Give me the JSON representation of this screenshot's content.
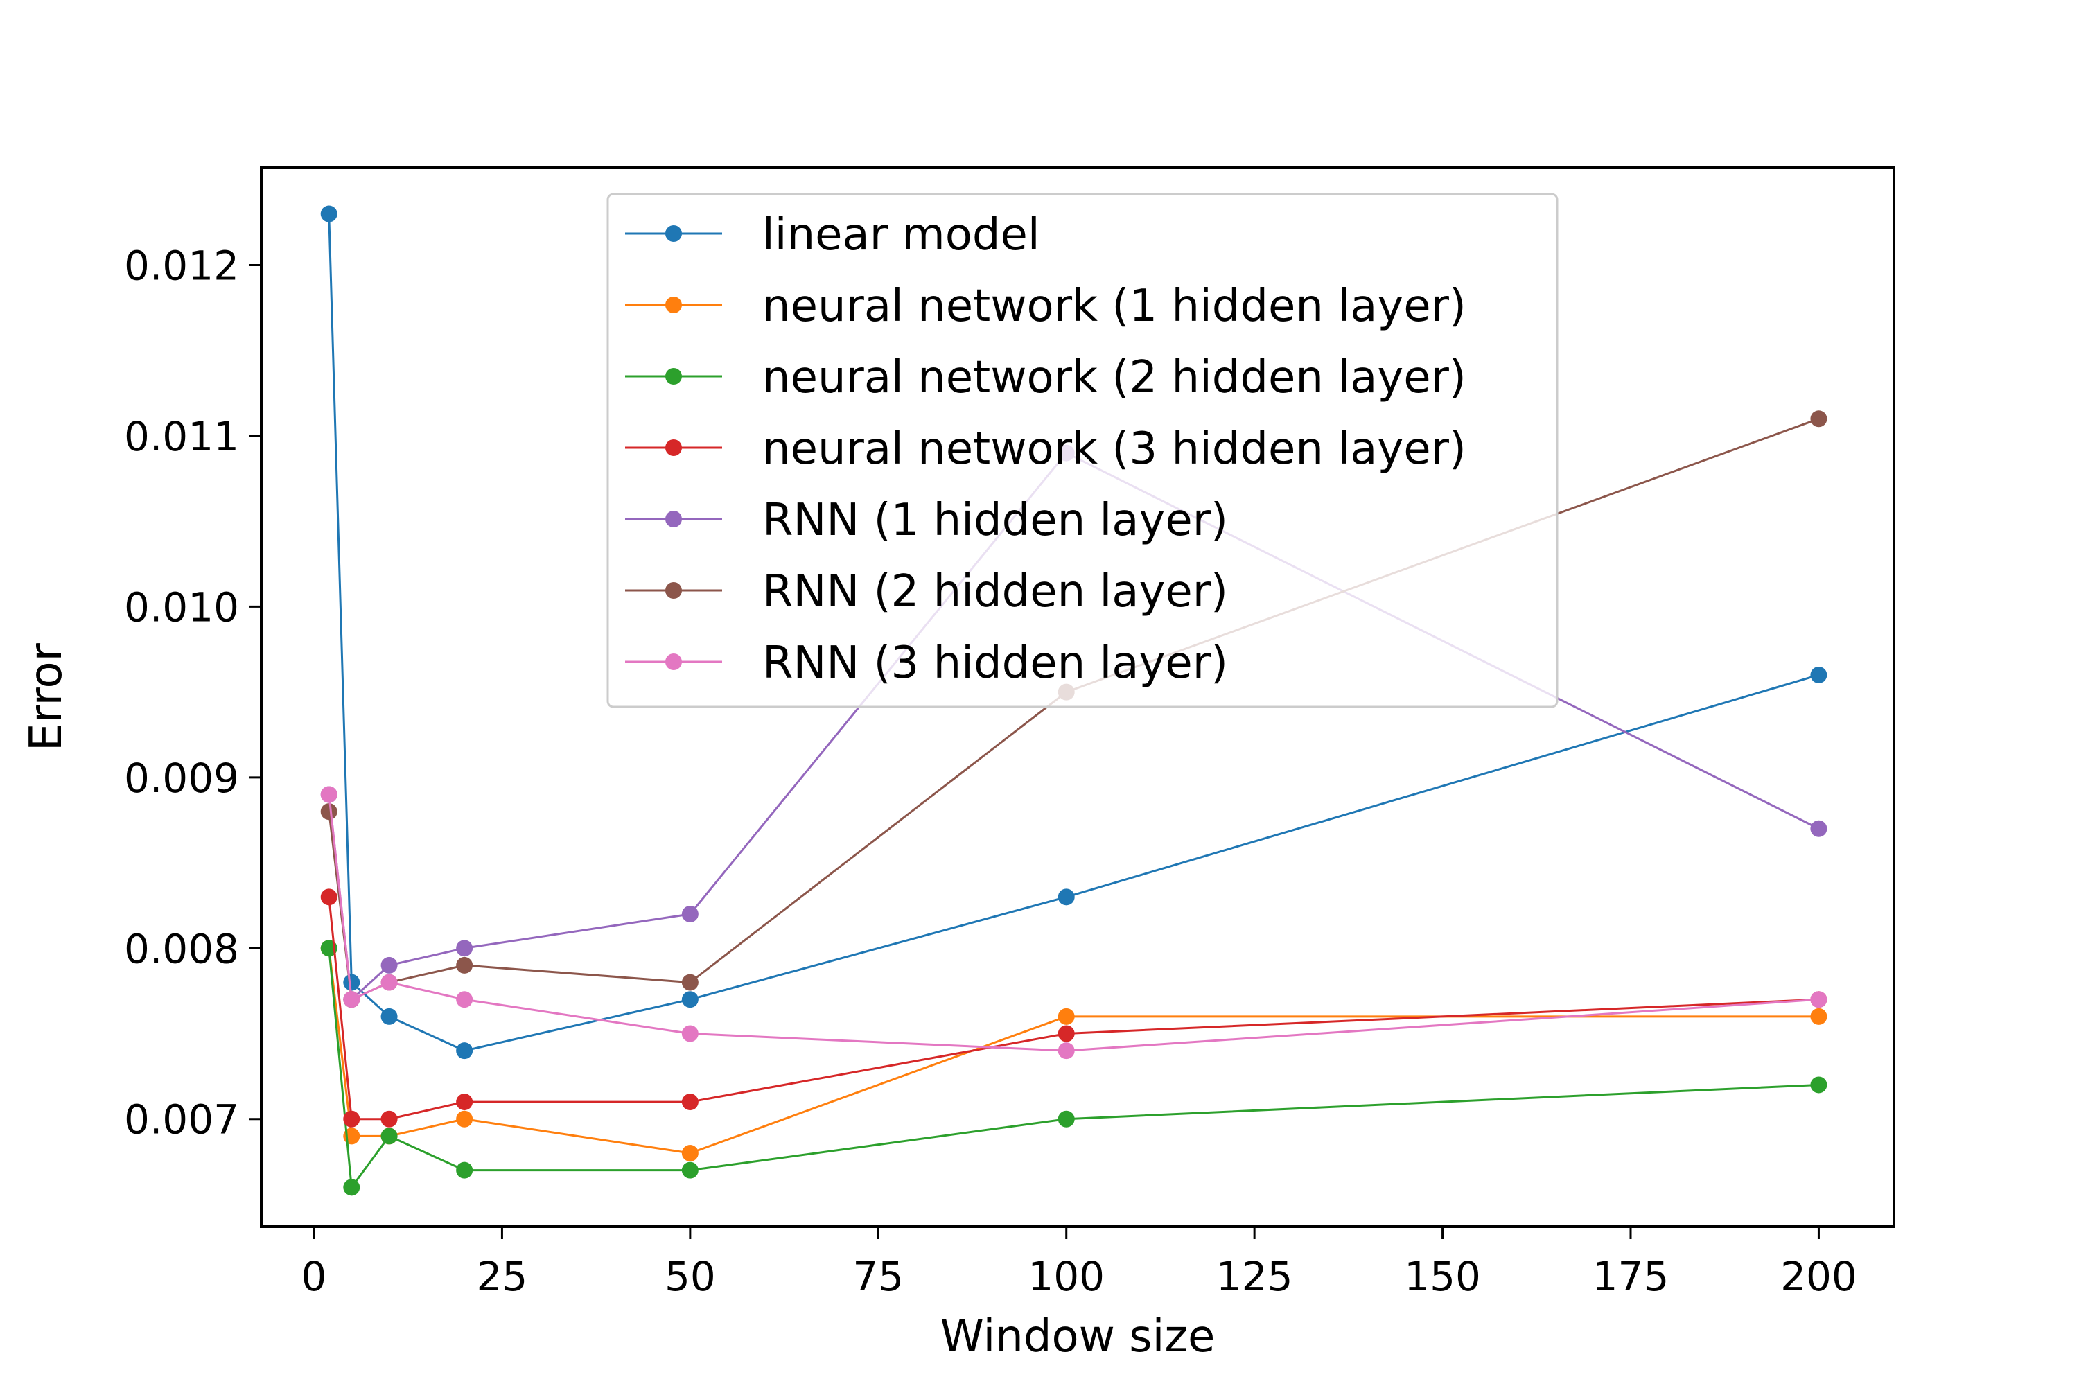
{
  "chart_data": {
    "type": "line",
    "title": "",
    "xlabel": "Window size",
    "ylabel": "Error",
    "xlim": [
      -7,
      210
    ],
    "ylim": [
      0.00637,
      0.01257
    ],
    "grid": false,
    "legend_position": "top-center",
    "x_ticks": [
      0,
      25,
      50,
      75,
      100,
      125,
      150,
      175,
      200
    ],
    "x_tick_labels": [
      "0",
      "25",
      "50",
      "75",
      "100",
      "125",
      "150",
      "175",
      "200"
    ],
    "y_ticks": [
      0.007,
      0.008,
      0.009,
      0.01,
      0.011,
      0.012
    ],
    "y_tick_labels": [
      "0.007",
      "0.008",
      "0.009",
      "0.010",
      "0.011",
      "0.012"
    ],
    "x": [
      2,
      5,
      10,
      20,
      50,
      100,
      200
    ],
    "series": [
      {
        "name": "linear model",
        "color": "#1f77b4",
        "values": [
          0.0123,
          0.0078,
          0.0076,
          0.0074,
          0.0077,
          0.0083,
          0.0096
        ]
      },
      {
        "name": "neural network (1 hidden layer)",
        "color": "#ff7f0e",
        "values": [
          0.008,
          0.0069,
          0.0069,
          0.007,
          0.0068,
          0.0076,
          0.0076
        ]
      },
      {
        "name": "neural network (2 hidden layer)",
        "color": "#2ca02c",
        "values": [
          0.008,
          0.0066,
          0.0069,
          0.0067,
          0.0067,
          0.007,
          0.0072
        ]
      },
      {
        "name": "neural network (3 hidden layer)",
        "color": "#d62728",
        "values": [
          0.0083,
          0.007,
          0.007,
          0.0071,
          0.0071,
          0.0075,
          0.0077
        ]
      },
      {
        "name": "RNN (1 hidden layer)",
        "color": "#9467bd",
        "values": [
          0.0089,
          0.0077,
          0.0079,
          0.008,
          0.0082,
          0.0109,
          0.0087
        ]
      },
      {
        "name": "RNN (2 hidden layer)",
        "color": "#8c564b",
        "values": [
          0.0088,
          0.0077,
          0.0078,
          0.0079,
          0.0078,
          0.0095,
          0.0111
        ]
      },
      {
        "name": "RNN (3 hidden layer)",
        "color": "#e377c2",
        "values": [
          0.0089,
          0.0077,
          0.0078,
          0.0077,
          0.0075,
          0.0074,
          0.0077
        ]
      }
    ]
  }
}
